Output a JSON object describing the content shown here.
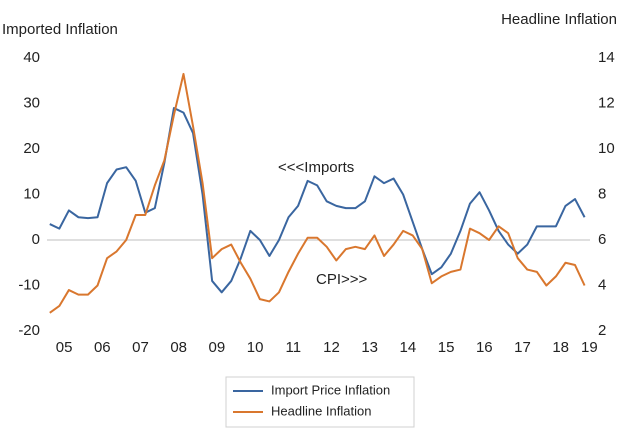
{
  "chart_data": {
    "type": "line",
    "y_label": "Imported Inflation",
    "y2_label": "Headline Inflation",
    "annotations": [
      "<<<Imports",
      "CPI>>>"
    ],
    "categories": [
      null,
      "05",
      null,
      null,
      null,
      "06",
      null,
      null,
      null,
      "07",
      null,
      null,
      null,
      "08",
      null,
      null,
      null,
      "09",
      null,
      null,
      null,
      "10",
      null,
      null,
      null,
      "11",
      null,
      null,
      null,
      "12",
      null,
      null,
      null,
      "13",
      null,
      null,
      null,
      "14",
      null,
      null,
      null,
      "15",
      null,
      null,
      null,
      "16",
      null,
      null,
      null,
      "17",
      null,
      null,
      null,
      "18",
      null,
      null,
      "19"
    ],
    "ylim": [
      -20,
      40
    ],
    "yticks": [
      -20,
      -10,
      0,
      10,
      20,
      30,
      40
    ],
    "y2lim": [
      2,
      14
    ],
    "y2ticks": [
      2,
      4,
      6,
      8,
      10,
      12,
      14
    ],
    "legend": "bottom",
    "series": [
      {
        "name": "Import Price Inflation",
        "color": "#3a66a0",
        "values": [
          3.5,
          2.5,
          6.5,
          5,
          4.8,
          5,
          12.5,
          15.5,
          16,
          13,
          6,
          7,
          17,
          29,
          28,
          23.5,
          10,
          -9,
          -11.5,
          -9,
          -4,
          2,
          0,
          -3.5,
          0,
          5,
          7.5,
          13,
          12,
          8.5,
          7.5,
          7,
          7,
          8.5,
          14,
          12.5,
          13.5,
          10,
          4,
          -2,
          -7.5,
          -6,
          -3,
          2,
          8,
          10.5,
          6.5,
          2,
          -1,
          -3,
          -1,
          3,
          3,
          3,
          7.5,
          9,
          5
        ]
      },
      {
        "name": "Headline Inflation",
        "color": "#d9772e",
        "axis": "y2",
        "values": [
          2.8,
          3.1,
          3.8,
          3.6,
          3.6,
          4.0,
          5.2,
          5.5,
          6.0,
          7.1,
          7.1,
          8.4,
          9.5,
          11.5,
          13.3,
          11,
          8.5,
          5.2,
          5.6,
          5.8,
          5,
          4.3,
          3.4,
          3.3,
          3.7,
          4.6,
          5.4,
          6.1,
          6.1,
          5.7,
          5.1,
          5.6,
          5.7,
          5.6,
          6.2,
          5.3,
          5.8,
          6.4,
          6.2,
          5.6,
          4.1,
          4.4,
          4.6,
          4.7,
          6.5,
          6.3,
          6.0,
          6.6,
          6.3,
          5.2,
          4.7,
          4.6,
          4.0,
          4.4,
          5.0,
          4.9,
          4.0
        ]
      }
    ]
  }
}
